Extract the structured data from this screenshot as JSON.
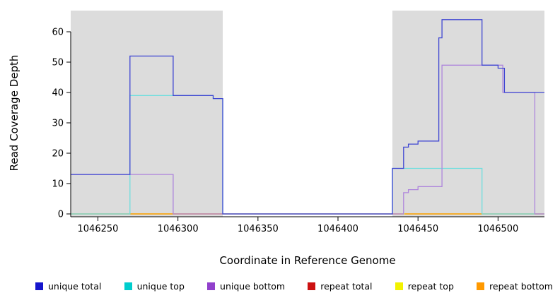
{
  "chart_data": {
    "type": "line",
    "style": "step-after",
    "title": "",
    "xlabel": "Coordinate in Reference Genome",
    "ylabel": "Read Coverage Depth",
    "xlim": [
      1046233,
      1046529
    ],
    "ylim": [
      0,
      64
    ],
    "xticks": [
      1046250,
      1046300,
      1046350,
      1046400,
      1046450,
      1046500
    ],
    "yticks": [
      0,
      10,
      20,
      30,
      40,
      50,
      60
    ],
    "grid": false,
    "legend_position": "bottom",
    "shaded_regions": {
      "color": "#DCDCDC",
      "ranges": [
        [
          1046233,
          1046328
        ],
        [
          1046434,
          1046529
        ]
      ]
    },
    "series": [
      {
        "name": "repeat total",
        "color": "#CC1111",
        "segments": [
          [
            [
              1046233,
              0
            ],
            [
              1046529,
              0
            ]
          ]
        ]
      },
      {
        "name": "repeat top",
        "color": "#F2F200",
        "segments": [
          [
            [
              1046233,
              0
            ],
            [
              1046529,
              0
            ]
          ]
        ]
      },
      {
        "name": "repeat bottom",
        "color": "#FFA500",
        "segments": [
          [
            [
              1046270,
              0
            ],
            [
              1046328,
              0
            ]
          ],
          [
            [
              1046442,
              0
            ],
            [
              1046490,
              0
            ]
          ]
        ]
      },
      {
        "name": "unique top",
        "color": "#6FDEDE",
        "segments": [
          [
            [
              1046233,
              0
            ],
            [
              1046270,
              39
            ],
            [
              1046322,
              38
            ],
            [
              1046328,
              0
            ],
            [
              1046434,
              15
            ],
            [
              1046490,
              0
            ],
            [
              1046529,
              0
            ]
          ]
        ]
      },
      {
        "name": "unique bottom",
        "color": "#AE85DC",
        "segments": [
          [
            [
              1046233,
              13
            ],
            [
              1046297,
              0
            ],
            [
              1046434,
              0
            ],
            [
              1046441,
              7
            ],
            [
              1046444,
              8
            ],
            [
              1046450,
              9
            ],
            [
              1046465,
              49
            ],
            [
              1046503,
              40
            ],
            [
              1046523,
              0
            ],
            [
              1046529,
              0
            ]
          ]
        ]
      },
      {
        "name": "unique total",
        "color": "#3F46D2",
        "segments": [
          [
            [
              1046233,
              13
            ],
            [
              1046270,
              52
            ],
            [
              1046297,
              39
            ],
            [
              1046322,
              38
            ],
            [
              1046328,
              0
            ],
            [
              1046434,
              15
            ],
            [
              1046441,
              22
            ],
            [
              1046444,
              23
            ],
            [
              1046450,
              24
            ],
            [
              1046463,
              58
            ],
            [
              1046465,
              64
            ],
            [
              1046490,
              49
            ],
            [
              1046500,
              48
            ],
            [
              1046504,
              40
            ],
            [
              1046529,
              40
            ]
          ]
        ]
      }
    ],
    "legend": [
      {
        "label": "unique total",
        "color": "#1515CC"
      },
      {
        "label": "unique top",
        "color": "#00CDCD"
      },
      {
        "label": "unique bottom",
        "color": "#9140CC"
      },
      {
        "label": "repeat total",
        "color": "#CC1111"
      },
      {
        "label": "repeat top",
        "color": "#F2F200"
      },
      {
        "label": "repeat bottom",
        "color": "#FF9900"
      }
    ]
  }
}
